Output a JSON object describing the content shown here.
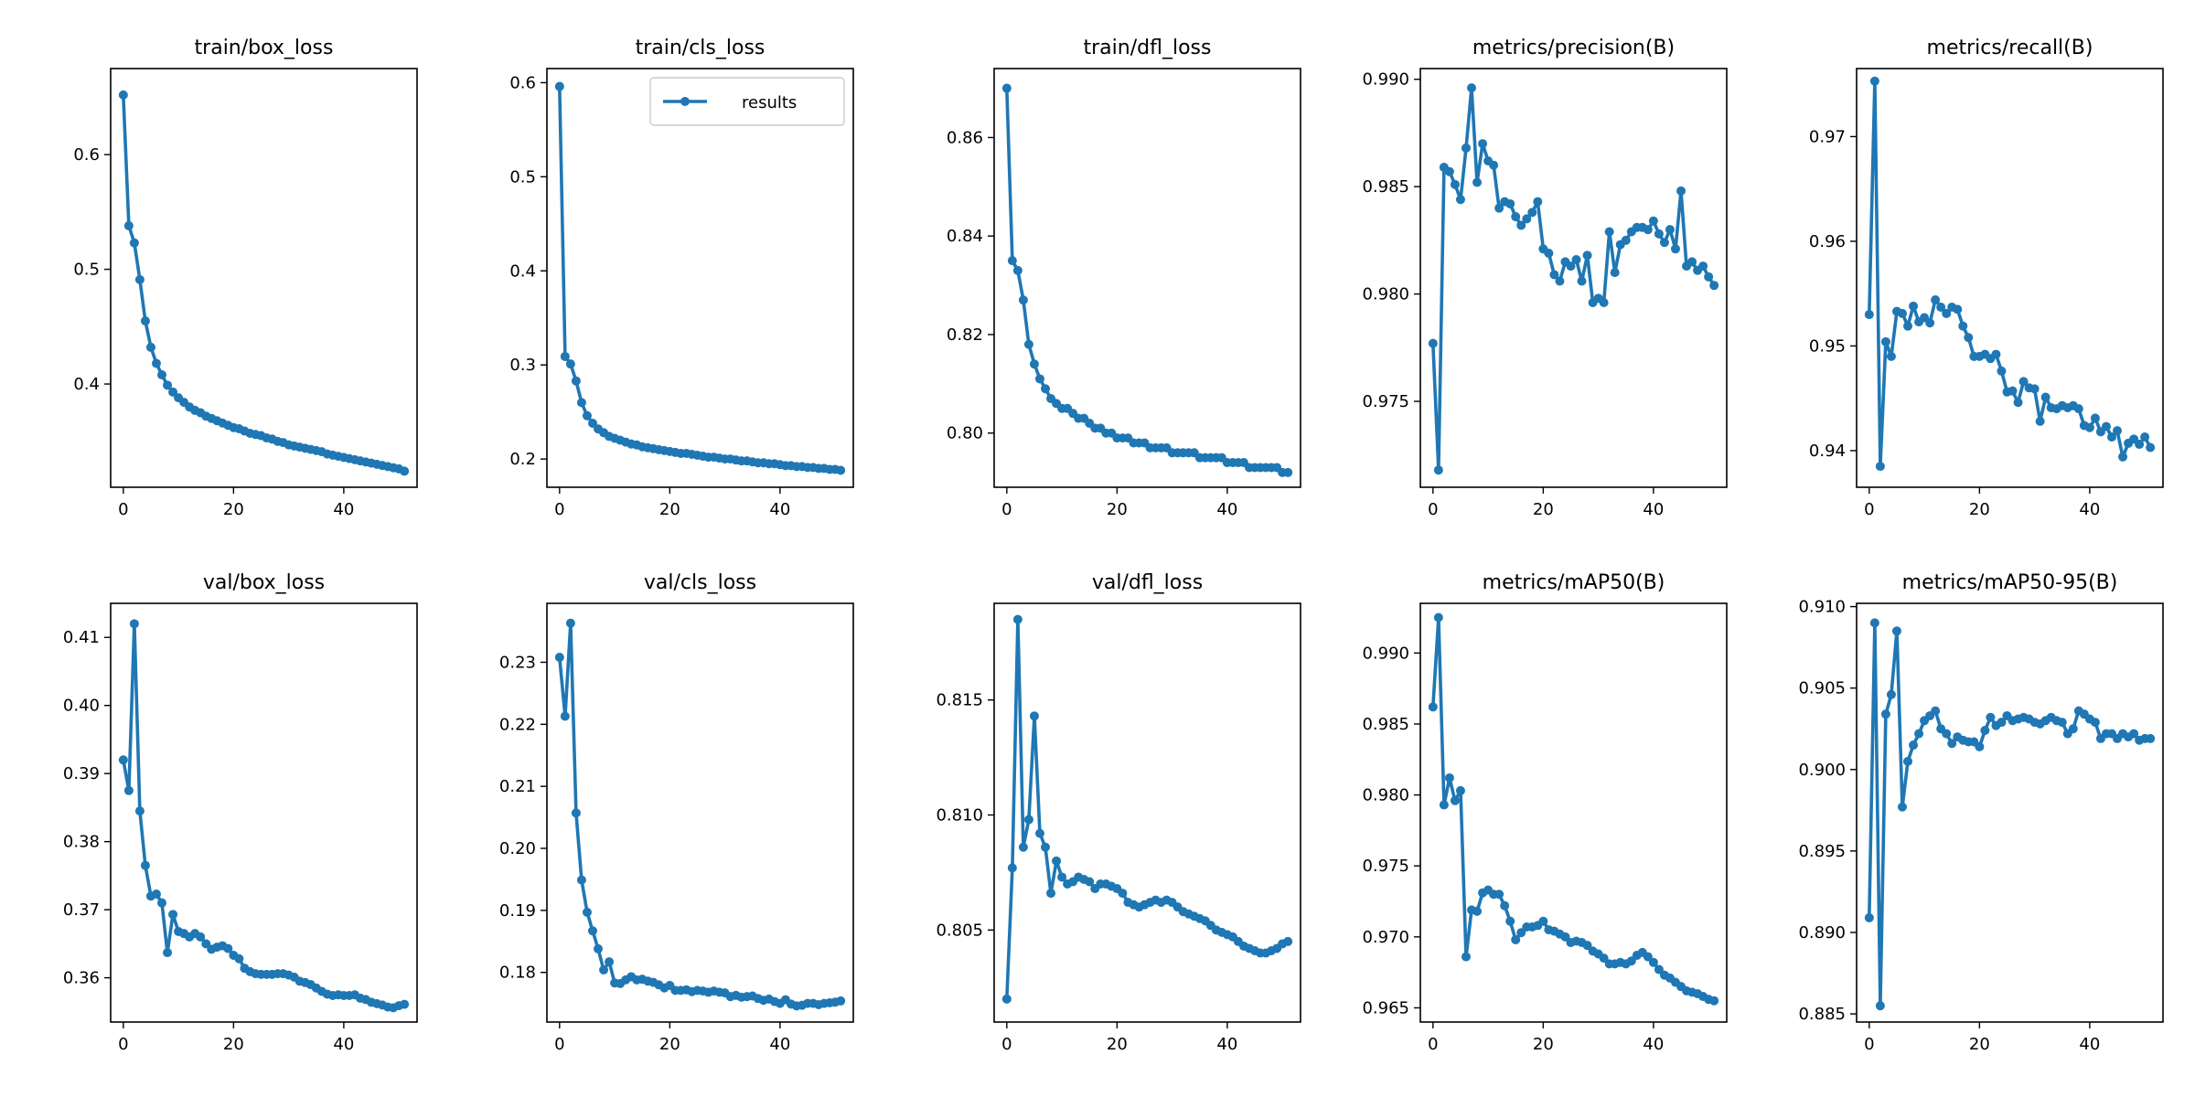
{
  "figure": {
    "series_color": "#1f77b4",
    "legend_label": "results"
  },
  "chart_data": [
    {
      "type": "line",
      "title": "train/box_loss",
      "xlabel": "",
      "ylabel": "",
      "x_range": [
        0,
        51
      ],
      "ylim": [
        0.31,
        0.675
      ],
      "x_ticks": [
        0,
        20,
        40
      ],
      "y_ticks": [
        0.4,
        0.5,
        0.6
      ],
      "y_tick_labels": [
        "0.4",
        "0.5",
        "0.6"
      ],
      "grid": false,
      "legend": null,
      "series": [
        {
          "values": [
            0.652,
            0.538,
            0.523,
            0.491,
            0.455,
            0.432,
            0.418,
            0.408,
            0.399,
            0.393,
            0.388,
            0.384,
            0.38,
            0.377,
            0.375,
            0.372,
            0.37,
            0.368,
            0.366,
            0.364,
            0.362,
            0.361,
            0.359,
            0.357,
            0.356,
            0.355,
            0.353,
            0.352,
            0.35,
            0.349,
            0.347,
            0.346,
            0.345,
            0.344,
            0.343,
            0.342,
            0.341,
            0.339,
            0.338,
            0.337,
            0.336,
            0.335,
            0.334,
            0.333,
            0.332,
            0.331,
            0.33,
            0.329,
            0.328,
            0.327,
            0.326,
            0.324
          ]
        }
      ]
    },
    {
      "type": "line",
      "title": "train/cls_loss",
      "xlabel": "",
      "ylabel": "",
      "x_range": [
        0,
        51
      ],
      "ylim": [
        0.17,
        0.615
      ],
      "x_ticks": [
        0,
        20,
        40
      ],
      "y_ticks": [
        0.2,
        0.3,
        0.4,
        0.5,
        0.6
      ],
      "y_tick_labels": [
        "0.2",
        "0.3",
        "0.4",
        "0.5",
        "0.6"
      ],
      "grid": false,
      "legend": "upper right",
      "series": [
        {
          "name": "results",
          "values": [
            0.596,
            0.309,
            0.301,
            0.283,
            0.26,
            0.246,
            0.238,
            0.232,
            0.228,
            0.224,
            0.222,
            0.22,
            0.218,
            0.216,
            0.215,
            0.213,
            0.212,
            0.211,
            0.21,
            0.209,
            0.208,
            0.207,
            0.206,
            0.206,
            0.205,
            0.204,
            0.203,
            0.202,
            0.202,
            0.201,
            0.2,
            0.2,
            0.199,
            0.198,
            0.198,
            0.197,
            0.196,
            0.196,
            0.195,
            0.195,
            0.194,
            0.193,
            0.193,
            0.192,
            0.192,
            0.191,
            0.191,
            0.19,
            0.19,
            0.189,
            0.189,
            0.188
          ]
        }
      ]
    },
    {
      "type": "line",
      "title": "train/dfl_loss",
      "xlabel": "",
      "ylabel": "",
      "x_range": [
        0,
        51
      ],
      "ylim": [
        0.789,
        0.874
      ],
      "x_ticks": [
        0,
        20,
        40
      ],
      "y_ticks": [
        0.8,
        0.82,
        0.84,
        0.86
      ],
      "y_tick_labels": [
        "0.80",
        "0.82",
        "0.84",
        "0.86"
      ],
      "grid": false,
      "legend": null,
      "series": [
        {
          "values": [
            0.87,
            0.835,
            0.833,
            0.827,
            0.818,
            0.814,
            0.811,
            0.809,
            0.807,
            0.806,
            0.805,
            0.805,
            0.804,
            0.803,
            0.803,
            0.802,
            0.801,
            0.801,
            0.8,
            0.8,
            0.799,
            0.799,
            0.799,
            0.798,
            0.798,
            0.798,
            0.797,
            0.797,
            0.797,
            0.797,
            0.796,
            0.796,
            0.796,
            0.796,
            0.796,
            0.795,
            0.795,
            0.795,
            0.795,
            0.795,
            0.794,
            0.794,
            0.794,
            0.794,
            0.793,
            0.793,
            0.793,
            0.793,
            0.793,
            0.793,
            0.792,
            0.792
          ]
        }
      ]
    },
    {
      "type": "line",
      "title": "metrics/precision(B)",
      "xlabel": "",
      "ylabel": "",
      "x_range": [
        0,
        51
      ],
      "ylim": [
        0.971,
        0.9905
      ],
      "x_ticks": [
        0,
        20,
        40
      ],
      "y_ticks": [
        0.975,
        0.98,
        0.985,
        0.99
      ],
      "y_tick_labels": [
        "0.975",
        "0.980",
        "0.985",
        "0.990"
      ],
      "grid": false,
      "legend": null,
      "series": [
        {
          "values": [
            0.9777,
            0.9718,
            0.9859,
            0.9857,
            0.9851,
            0.9844,
            0.9868,
            0.9896,
            0.9852,
            0.987,
            0.9862,
            0.986,
            0.984,
            0.9843,
            0.9842,
            0.9836,
            0.9832,
            0.9835,
            0.9838,
            0.9843,
            0.9821,
            0.9819,
            0.9809,
            0.9806,
            0.9815,
            0.9813,
            0.9816,
            0.9806,
            0.9818,
            0.9796,
            0.9798,
            0.9796,
            0.9829,
            0.981,
            0.9823,
            0.9825,
            0.9829,
            0.9831,
            0.9831,
            0.983,
            0.9834,
            0.9828,
            0.9824,
            0.983,
            0.9821,
            0.9848,
            0.9813,
            0.9815,
            0.9811,
            0.9813,
            0.9808,
            0.9804
          ]
        }
      ]
    },
    {
      "type": "line",
      "title": "metrics/recall(B)",
      "xlabel": "",
      "ylabel": "",
      "x_range": [
        0,
        51
      ],
      "ylim": [
        0.9365,
        0.9765
      ],
      "x_ticks": [
        0,
        20,
        40
      ],
      "y_ticks": [
        0.94,
        0.95,
        0.96,
        0.97
      ],
      "y_tick_labels": [
        "0.94",
        "0.95",
        "0.96",
        "0.97"
      ],
      "grid": false,
      "legend": null,
      "series": [
        {
          "values": [
            0.953,
            0.9753,
            0.9385,
            0.9504,
            0.949,
            0.9533,
            0.9531,
            0.9519,
            0.9538,
            0.9523,
            0.9527,
            0.9522,
            0.9544,
            0.9537,
            0.9531,
            0.9537,
            0.9535,
            0.9519,
            0.9508,
            0.949,
            0.949,
            0.9492,
            0.9488,
            0.9492,
            0.9476,
            0.9456,
            0.9457,
            0.9446,
            0.9466,
            0.946,
            0.9459,
            0.9428,
            0.9451,
            0.9441,
            0.944,
            0.9443,
            0.9441,
            0.9443,
            0.944,
            0.9424,
            0.9422,
            0.9431,
            0.9418,
            0.9423,
            0.9413,
            0.9419,
            0.9394,
            0.9407,
            0.9411,
            0.9406,
            0.9413,
            0.9403
          ]
        }
      ]
    },
    {
      "type": "line",
      "title": "val/box_loss",
      "xlabel": "",
      "ylabel": "",
      "x_range": [
        0,
        51
      ],
      "ylim": [
        0.3535,
        0.415
      ],
      "x_ticks": [
        0,
        20,
        40
      ],
      "y_ticks": [
        0.36,
        0.37,
        0.38,
        0.39,
        0.4,
        0.41
      ],
      "y_tick_labels": [
        "0.36",
        "0.37",
        "0.38",
        "0.39",
        "0.40",
        "0.41"
      ],
      "grid": false,
      "legend": null,
      "series": [
        {
          "values": [
            0.392,
            0.3875,
            0.412,
            0.3845,
            0.3765,
            0.372,
            0.3723,
            0.371,
            0.3637,
            0.3693,
            0.3668,
            0.3665,
            0.366,
            0.3665,
            0.366,
            0.365,
            0.3642,
            0.3645,
            0.3647,
            0.3643,
            0.3633,
            0.3628,
            0.3614,
            0.3609,
            0.3606,
            0.3605,
            0.3605,
            0.3605,
            0.3606,
            0.3606,
            0.3604,
            0.3601,
            0.3595,
            0.3593,
            0.359,
            0.3585,
            0.358,
            0.3576,
            0.3574,
            0.3575,
            0.3574,
            0.3574,
            0.3575,
            0.357,
            0.3568,
            0.3564,
            0.3562,
            0.356,
            0.3557,
            0.3556,
            0.3559,
            0.3561
          ]
        }
      ]
    },
    {
      "type": "line",
      "title": "val/cls_loss",
      "xlabel": "",
      "ylabel": "",
      "x_range": [
        0,
        51
      ],
      "ylim": [
        0.172,
        0.2395
      ],
      "x_ticks": [
        0,
        20,
        40
      ],
      "y_ticks": [
        0.18,
        0.19,
        0.2,
        0.21,
        0.22,
        0.23
      ],
      "y_tick_labels": [
        "0.18",
        "0.19",
        "0.20",
        "0.21",
        "0.22",
        "0.23"
      ],
      "grid": false,
      "legend": null,
      "series": [
        {
          "values": [
            0.2308,
            0.2213,
            0.2363,
            0.2057,
            0.1949,
            0.1897,
            0.1867,
            0.1838,
            0.1804,
            0.1817,
            0.1783,
            0.1782,
            0.1788,
            0.1793,
            0.1788,
            0.1789,
            0.1786,
            0.1784,
            0.178,
            0.1775,
            0.1779,
            0.1771,
            0.1771,
            0.1772,
            0.1769,
            0.1771,
            0.177,
            0.1768,
            0.177,
            0.1768,
            0.1767,
            0.1761,
            0.1763,
            0.176,
            0.1761,
            0.1762,
            0.1758,
            0.1755,
            0.1757,
            0.1753,
            0.175,
            0.1756,
            0.1749,
            0.1746,
            0.1747,
            0.175,
            0.175,
            0.1748,
            0.175,
            0.1751,
            0.1752,
            0.1754
          ]
        }
      ]
    },
    {
      "type": "line",
      "title": "val/dfl_loss",
      "xlabel": "",
      "ylabel": "",
      "x_range": [
        0,
        51
      ],
      "ylim": [
        0.801,
        0.8192
      ],
      "x_ticks": [
        0,
        20,
        40
      ],
      "y_ticks": [
        0.805,
        0.81,
        0.815
      ],
      "y_tick_labels": [
        "0.805",
        "0.810",
        "0.815"
      ],
      "grid": false,
      "legend": null,
      "series": [
        {
          "values": [
            0.802,
            0.8077,
            0.8185,
            0.8086,
            0.8098,
            0.8143,
            0.8092,
            0.8086,
            0.8066,
            0.808,
            0.8073,
            0.807,
            0.8071,
            0.8073,
            0.8072,
            0.8071,
            0.8068,
            0.807,
            0.807,
            0.8069,
            0.8068,
            0.8066,
            0.8062,
            0.8061,
            0.806,
            0.8061,
            0.8062,
            0.8063,
            0.8062,
            0.8063,
            0.8062,
            0.806,
            0.8058,
            0.8057,
            0.8056,
            0.8055,
            0.8054,
            0.8052,
            0.805,
            0.8049,
            0.8048,
            0.8047,
            0.8045,
            0.8043,
            0.8042,
            0.8041,
            0.804,
            0.804,
            0.8041,
            0.8042,
            0.8044,
            0.8045
          ]
        }
      ]
    },
    {
      "type": "line",
      "title": "metrics/mAP50(B)",
      "xlabel": "",
      "ylabel": "",
      "x_range": [
        0,
        51
      ],
      "ylim": [
        0.964,
        0.9935
      ],
      "x_ticks": [
        0,
        20,
        40
      ],
      "y_ticks": [
        0.965,
        0.97,
        0.975,
        0.98,
        0.985,
        0.99
      ],
      "y_tick_labels": [
        "0.965",
        "0.970",
        "0.975",
        "0.980",
        "0.985",
        "0.990"
      ],
      "grid": false,
      "legend": null,
      "series": [
        {
          "values": [
            0.9862,
            0.9925,
            0.9793,
            0.9812,
            0.9796,
            0.9803,
            0.9686,
            0.9719,
            0.9718,
            0.9731,
            0.9733,
            0.973,
            0.973,
            0.9722,
            0.9711,
            0.9698,
            0.9703,
            0.9707,
            0.9707,
            0.9708,
            0.9711,
            0.9705,
            0.9704,
            0.9702,
            0.97,
            0.9696,
            0.9697,
            0.9696,
            0.9694,
            0.969,
            0.9688,
            0.9685,
            0.9681,
            0.9681,
            0.9682,
            0.9681,
            0.9683,
            0.9687,
            0.9689,
            0.9686,
            0.9682,
            0.9677,
            0.9673,
            0.9671,
            0.9668,
            0.9665,
            0.9662,
            0.9661,
            0.966,
            0.9658,
            0.9656,
            0.9655
          ]
        }
      ]
    },
    {
      "type": "line",
      "title": "metrics/mAP50-95(B)",
      "xlabel": "",
      "ylabel": "",
      "x_range": [
        0,
        51
      ],
      "ylim": [
        0.8845,
        0.9102
      ],
      "x_ticks": [
        0,
        20,
        40
      ],
      "y_ticks": [
        0.885,
        0.89,
        0.895,
        0.9,
        0.905,
        0.91
      ],
      "y_tick_labels": [
        "0.885",
        "0.890",
        "0.895",
        "0.900",
        "0.905",
        "0.910"
      ],
      "grid": false,
      "legend": null,
      "series": [
        {
          "values": [
            0.8909,
            0.909,
            0.8855,
            0.9034,
            0.9046,
            0.9085,
            0.8977,
            0.9005,
            0.9015,
            0.9022,
            0.903,
            0.9033,
            0.9036,
            0.9025,
            0.9022,
            0.9016,
            0.902,
            0.9018,
            0.9017,
            0.9017,
            0.9014,
            0.9024,
            0.9032,
            0.9027,
            0.9029,
            0.9033,
            0.903,
            0.9031,
            0.9032,
            0.9031,
            0.9029,
            0.9028,
            0.903,
            0.9032,
            0.903,
            0.9029,
            0.9022,
            0.9025,
            0.9036,
            0.9034,
            0.9031,
            0.9029,
            0.9019,
            0.9022,
            0.9022,
            0.9019,
            0.9022,
            0.902,
            0.9022,
            0.9018,
            0.9019,
            0.9019
          ]
        }
      ]
    }
  ]
}
